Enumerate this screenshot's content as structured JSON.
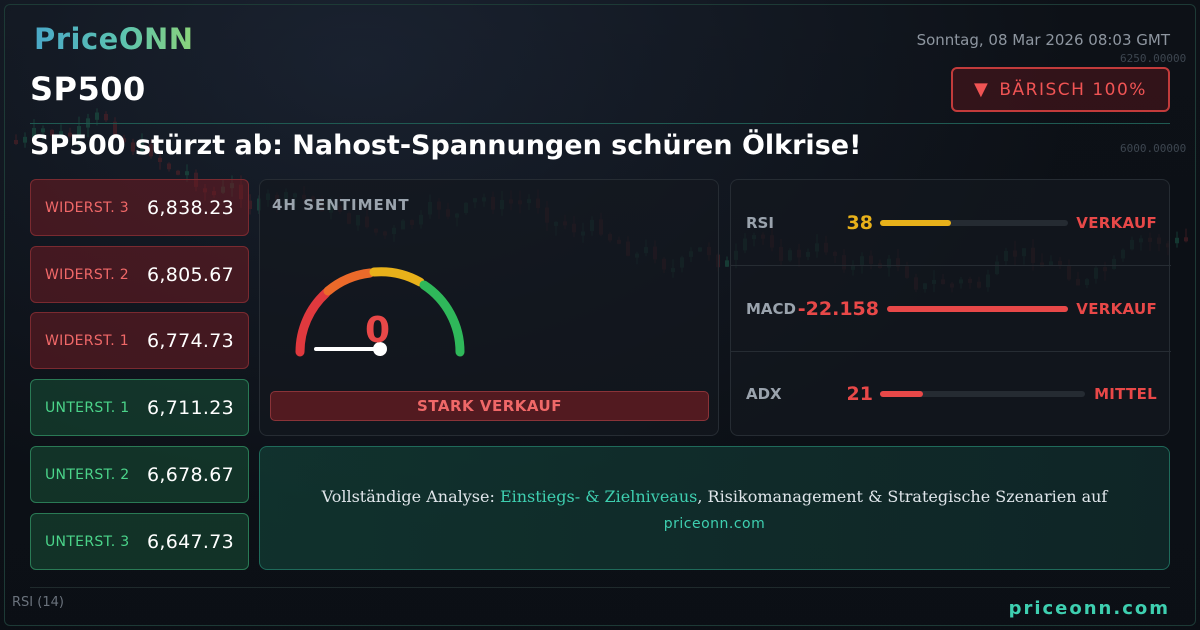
{
  "brand": {
    "logo": "PriceONN"
  },
  "header": {
    "date": "Sonntag, 08 Mar 2026 08:03 GMT",
    "symbol": "SP500",
    "badge": {
      "icon": "down-triangle-icon",
      "label": "BÄRISCH 100%"
    },
    "headline": "SP500 stürzt ab: Nahost-Spannungen schüren Ölkrise!"
  },
  "levels": {
    "resistance": [
      {
        "label": "WIDERST. 3",
        "value": "6,838.23"
      },
      {
        "label": "WIDERST. 2",
        "value": "6,805.67"
      },
      {
        "label": "WIDERST. 1",
        "value": "6,774.73"
      }
    ],
    "support": [
      {
        "label": "UNTERST. 1",
        "value": "6,711.23"
      },
      {
        "label": "UNTERST. 2",
        "value": "6,678.67"
      },
      {
        "label": "UNTERST. 3",
        "value": "6,647.73"
      }
    ]
  },
  "sentiment": {
    "title": "4H SENTIMENT",
    "value": "0",
    "gauge_fraction": 0,
    "signal": "STARK VERKAUF"
  },
  "indicators": [
    {
      "name": "RSI",
      "value": "38",
      "signal": "VERKAUF",
      "level": 0.38,
      "color": "#e8b11a",
      "signal_color": "#e84848"
    },
    {
      "name": "MACD",
      "value": "-22.158",
      "signal": "VERKAUF",
      "level": 1.0,
      "color": "#e84848",
      "signal_color": "#e84848"
    },
    {
      "name": "ADX",
      "value": "21",
      "signal": "MITTEL",
      "level": 0.21,
      "color": "#e84848",
      "signal_color": "#e84848"
    }
  ],
  "cta": {
    "prefix": "Vollständige Analyse: ",
    "highlight": "Einstiegs- & Zielniveaus",
    "suffix": ", Risikomanagement & Strategische Szenarien auf",
    "site": "priceonn.com"
  },
  "background": {
    "axis_labels": [
      "6250.00000",
      "6000.00000"
    ],
    "rsi_tag": "RSI (14)"
  },
  "footer": {
    "site": "priceonn.com"
  },
  "colors": {
    "bearish": "#e84848",
    "bullish": "#4bd48a",
    "accent": "#3ecfb0",
    "warn": "#e8b11a"
  }
}
